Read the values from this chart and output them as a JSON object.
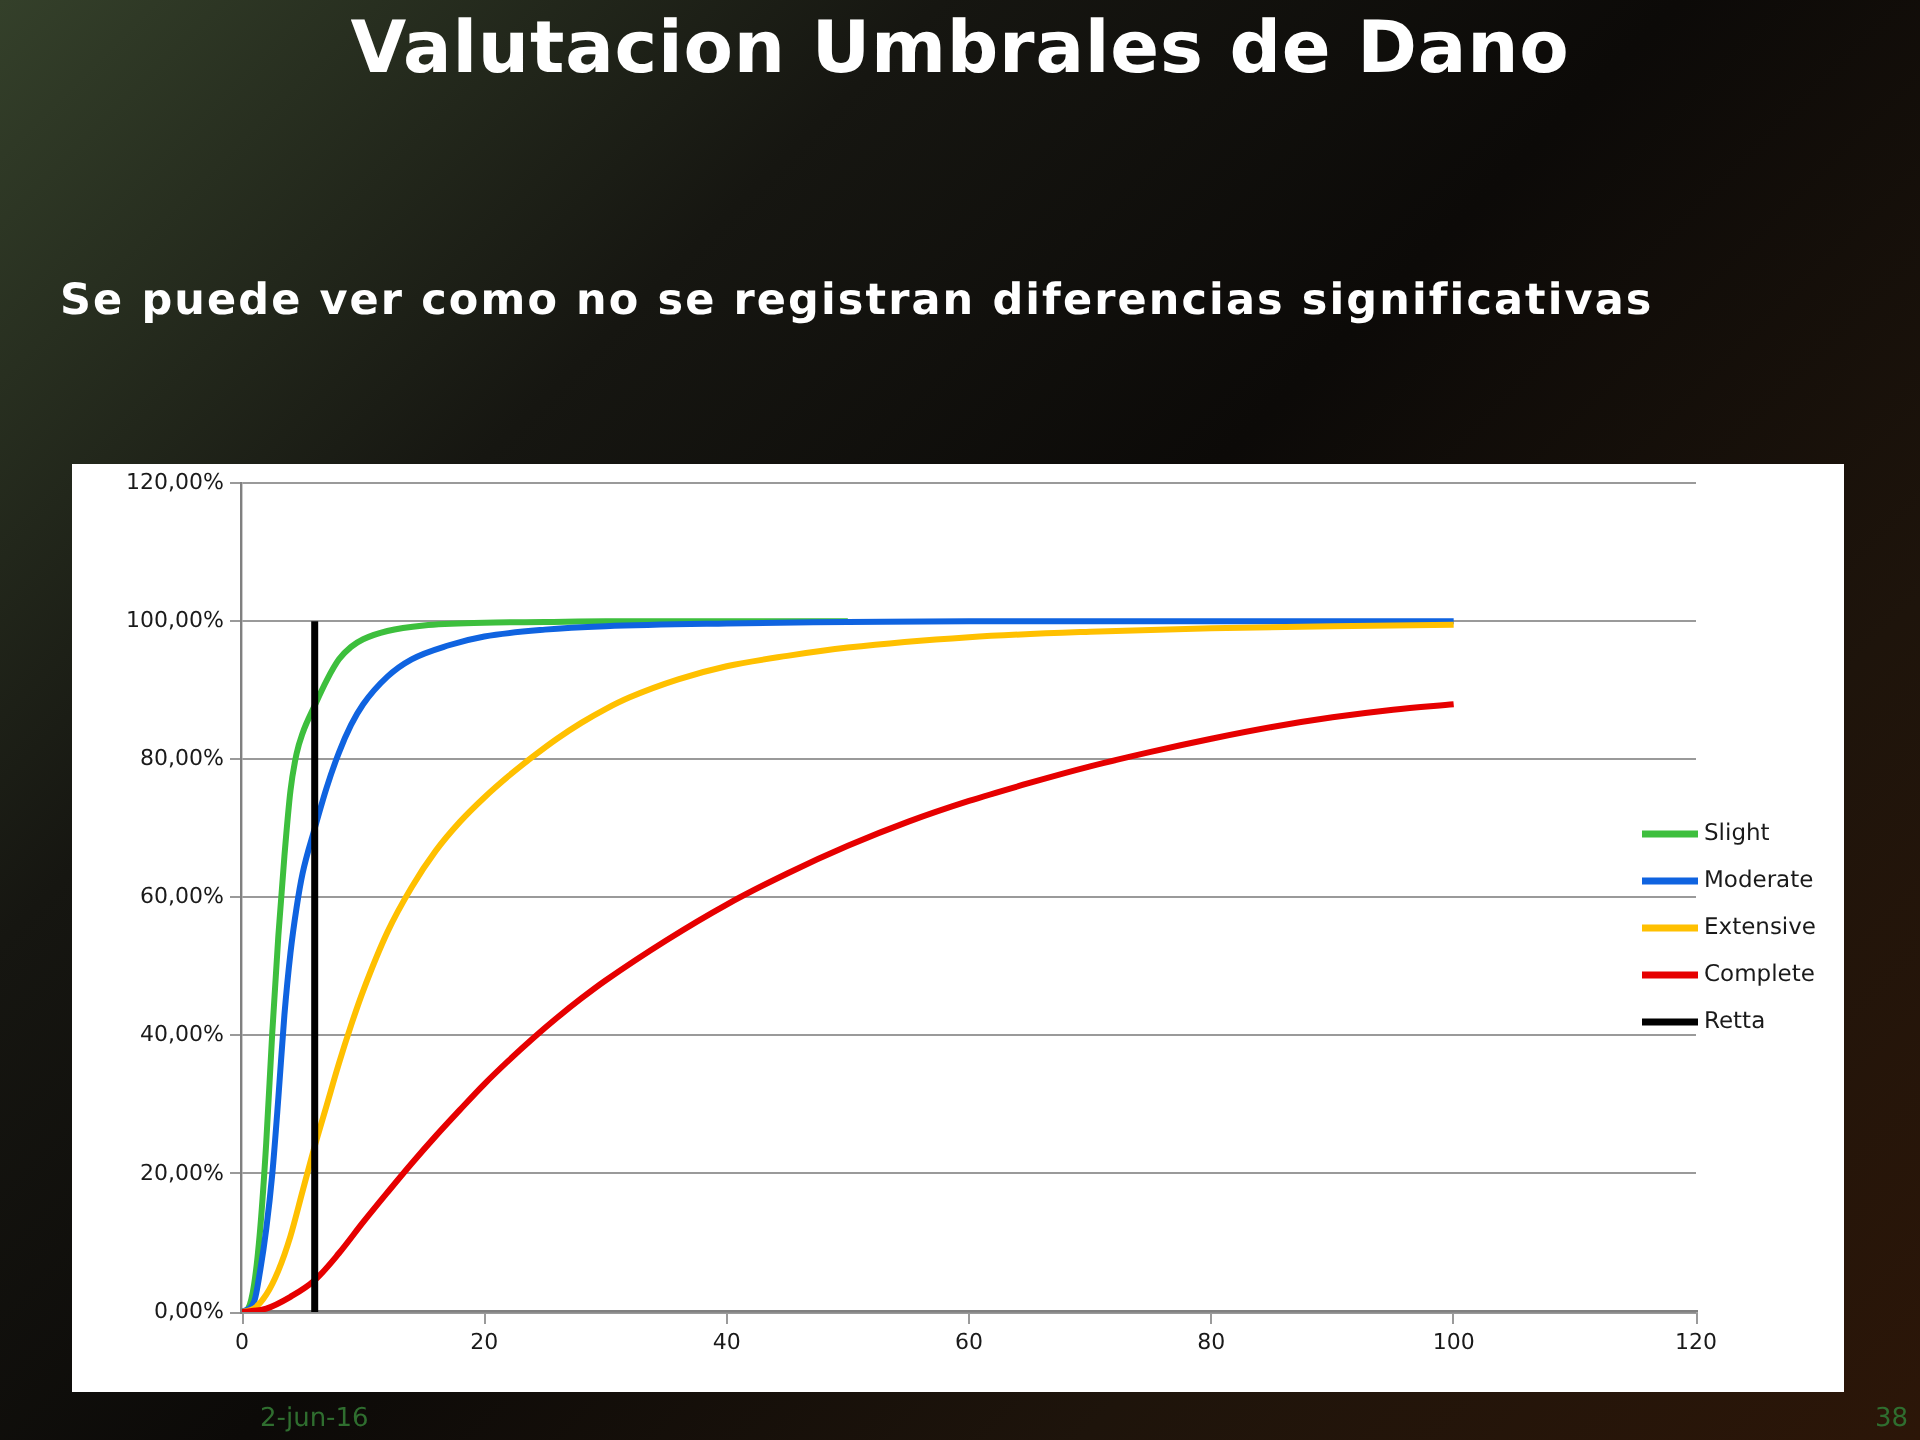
{
  "chart_data": {
    "type": "line",
    "title": "Valutacion Umbrales de Dano",
    "subtitle": "Se puede ver como no se registran diferencias significativas",
    "annotations": [
      "2-jun-16",
      "38"
    ],
    "xlim": [
      0,
      120
    ],
    "xticks": [
      0,
      20,
      40,
      60,
      80,
      100,
      120
    ],
    "ylim": [
      0,
      120
    ],
    "yticks": [
      {
        "value": 0,
        "label": "0,00%"
      },
      {
        "value": 20,
        "label": "20,00%"
      },
      {
        "value": 40,
        "label": "40,00%"
      },
      {
        "value": 60,
        "label": "60,00%"
      },
      {
        "value": 80,
        "label": "80,00%"
      },
      {
        "value": 100,
        "label": "100,00%"
      },
      {
        "value": 120,
        "label": "120,00%"
      }
    ],
    "grid": "y",
    "legend": "right",
    "marker": "none",
    "series": [
      {
        "name": "Slight",
        "color": "#3dbf3d",
        "x": [
          0,
          0.5,
          1,
          1.5,
          2,
          2.5,
          3,
          3.5,
          4,
          4.5,
          5,
          6,
          7,
          8,
          9,
          10,
          12,
          15,
          20,
          25,
          30,
          40,
          50
        ],
        "values": [
          0,
          0.5,
          4,
          12,
          24.5,
          40.5,
          54.5,
          66,
          75.5,
          80.8,
          83.8,
          87.8,
          91.5,
          94.5,
          96.3,
          97.4,
          98.6,
          99.4,
          99.8,
          99.9,
          100,
          100,
          100
        ]
      },
      {
        "name": "Moderate",
        "color": "#0f63e0",
        "x": [
          0,
          1,
          1.5,
          2,
          2.5,
          3,
          3.5,
          4,
          4.5,
          5,
          6,
          7,
          8,
          9,
          10,
          12,
          14,
          17,
          20,
          25,
          30,
          40,
          50,
          60,
          70,
          80,
          90,
          100
        ],
        "values": [
          0,
          1.5,
          6,
          12,
          20,
          31,
          43,
          52,
          58.5,
          63.5,
          70,
          76,
          81,
          85,
          88,
          92,
          94.5,
          96.5,
          97.8,
          98.8,
          99.3,
          99.7,
          99.9,
          100,
          100,
          100,
          100,
          100
        ]
      },
      {
        "name": "Extensive",
        "color": "#ffc000",
        "x": [
          0,
          1,
          2,
          3,
          4,
          5,
          6,
          7,
          8,
          9,
          10,
          12,
          14,
          16,
          18,
          20,
          22,
          24,
          26,
          28,
          30,
          32,
          36,
          40,
          45,
          50,
          60,
          70,
          80,
          90,
          100
        ],
        "values": [
          0,
          0.5,
          2.5,
          6,
          11,
          17.5,
          24,
          30,
          36,
          41.5,
          46.5,
          55,
          61.5,
          66.8,
          71,
          74.5,
          77.6,
          80.4,
          83,
          85.3,
          87.3,
          89,
          91.6,
          93.5,
          95,
          96.2,
          97.7,
          98.5,
          99,
          99.3,
          99.5
        ]
      },
      {
        "name": "Complete",
        "color": "#e60000",
        "x": [
          0,
          2,
          4,
          6,
          8,
          10,
          12,
          14,
          16,
          18,
          20,
          22,
          24,
          26,
          28,
          30,
          35,
          40,
          45,
          50,
          55,
          60,
          65,
          70,
          75,
          80,
          85,
          90,
          95,
          100
        ],
        "values": [
          0,
          0.5,
          2.2,
          4.6,
          8.5,
          13,
          17.3,
          21.5,
          25.5,
          29.3,
          33,
          36.4,
          39.6,
          42.6,
          45.4,
          48,
          53.8,
          59,
          63.5,
          67.5,
          71,
          74,
          76.6,
          79,
          81.1,
          83,
          84.7,
          86.1,
          87.2,
          88
        ]
      },
      {
        "name": "Retta",
        "color": "#000000",
        "x": [
          6,
          6
        ],
        "values": [
          0,
          100
        ]
      }
    ]
  }
}
